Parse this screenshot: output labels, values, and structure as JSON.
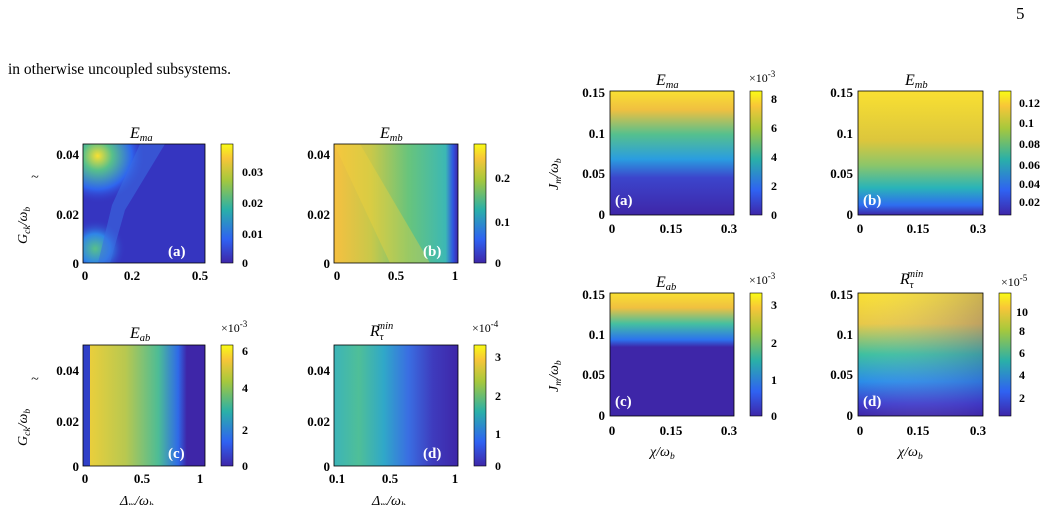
{
  "page_number": "5",
  "body_text": "in otherwise uncoupled subsystems.",
  "colors": {
    "cm_low": "#3e26a8",
    "cm_mid": "#2ab0a8",
    "cm_high": "#f9fb15",
    "blue": "#3a35c8",
    "cyan": "#3bb7c6",
    "green": "#8cc46a",
    "yellow": "#f6d83c"
  },
  "figure_left": {
    "ylabel_main": "G",
    "ylabel_sub": "ck",
    "ylabel_denom": "/ω",
    "ylabel_denom_sub": "b",
    "xlabel_main": "Δ",
    "xlabel_sub": "m",
    "xlabel_denom": "/ω",
    "xlabel_denom_sub": "b",
    "panels": [
      {
        "title": "E",
        "title_sub": "ma",
        "title_sup": "",
        "tag": "(a)",
        "xticks": [
          "0",
          "0.2",
          "0.5"
        ],
        "yticks": [
          "0",
          "0.02",
          "0.04"
        ],
        "cbar_ticks": [
          "0",
          "0.01",
          "0.02",
          "0.03"
        ],
        "cbar_multiplier": "",
        "cbar_exponent": ""
      },
      {
        "title": "E",
        "title_sub": "mb",
        "title_sup": "",
        "tag": "(b)",
        "xticks": [
          "0",
          "0.5",
          "1"
        ],
        "yticks": [
          "0",
          "0.02",
          "0.04"
        ],
        "cbar_ticks": [
          "0",
          "0.1",
          "0.2"
        ],
        "cbar_multiplier": "",
        "cbar_exponent": ""
      },
      {
        "title": "E",
        "title_sub": "ab",
        "title_sup": "",
        "tag": "(c)",
        "xticks": [
          "0",
          "0.5",
          "1"
        ],
        "yticks": [
          "0",
          "0.02",
          "0.04"
        ],
        "cbar_ticks": [
          "0",
          "2",
          "4",
          "6"
        ],
        "cbar_multiplier": "×10",
        "cbar_exponent": "-3"
      },
      {
        "title": "R",
        "title_sub": "τ",
        "title_sup": "min",
        "tag": "(d)",
        "xticks": [
          "0.1",
          "0.5",
          "1"
        ],
        "yticks": [
          "0",
          "0.02",
          "0.04"
        ],
        "cbar_ticks": [
          "0",
          "1",
          "2",
          "3"
        ],
        "cbar_multiplier": "×10",
        "cbar_exponent": "-4"
      }
    ]
  },
  "figure_right": {
    "ylabel_main": "J",
    "ylabel_sub": "m",
    "ylabel_denom": "/ω",
    "ylabel_denom_sub": "b",
    "xlabel_main": "χ",
    "xlabel_denom": "/ω",
    "xlabel_denom_sub": "b",
    "panels": [
      {
        "title": "E",
        "title_sub": "ma",
        "title_sup": "",
        "tag": "(a)",
        "xticks": [
          "0",
          "0.15",
          "0.3"
        ],
        "yticks": [
          "0",
          "0.05",
          "0.1",
          "0.15"
        ],
        "cbar_ticks": [
          "0",
          "2",
          "4",
          "6",
          "8"
        ],
        "cbar_multiplier": "×10",
        "cbar_exponent": "-3"
      },
      {
        "title": "E",
        "title_sub": "mb",
        "title_sup": "",
        "tag": "(b)",
        "xticks": [
          "0",
          "0.15",
          "0.3"
        ],
        "yticks": [
          "0",
          "0.05",
          "0.1",
          "0.15"
        ],
        "cbar_ticks": [
          "0.02",
          "0.04",
          "0.06",
          "0.08",
          "0.1",
          "0.12"
        ],
        "cbar_multiplier": "",
        "cbar_exponent": ""
      },
      {
        "title": "E",
        "title_sub": "ab",
        "title_sup": "",
        "tag": "(c)",
        "xticks": [
          "0",
          "0.15",
          "0.3"
        ],
        "yticks": [
          "0",
          "0.05",
          "0.1",
          "0.15"
        ],
        "cbar_ticks": [
          "0",
          "1",
          "2",
          "3"
        ],
        "cbar_multiplier": "×10",
        "cbar_exponent": "-3"
      },
      {
        "title": "R",
        "title_sub": "τ",
        "title_sup": "min",
        "tag": "(d)",
        "xticks": [
          "0",
          "0.15",
          "0.3"
        ],
        "yticks": [
          "0",
          "0.05",
          "0.1",
          "0.15"
        ],
        "cbar_ticks": [
          "2",
          "4",
          "6",
          "8",
          "10"
        ],
        "cbar_multiplier": "×10",
        "cbar_exponent": "-5"
      }
    ]
  }
}
